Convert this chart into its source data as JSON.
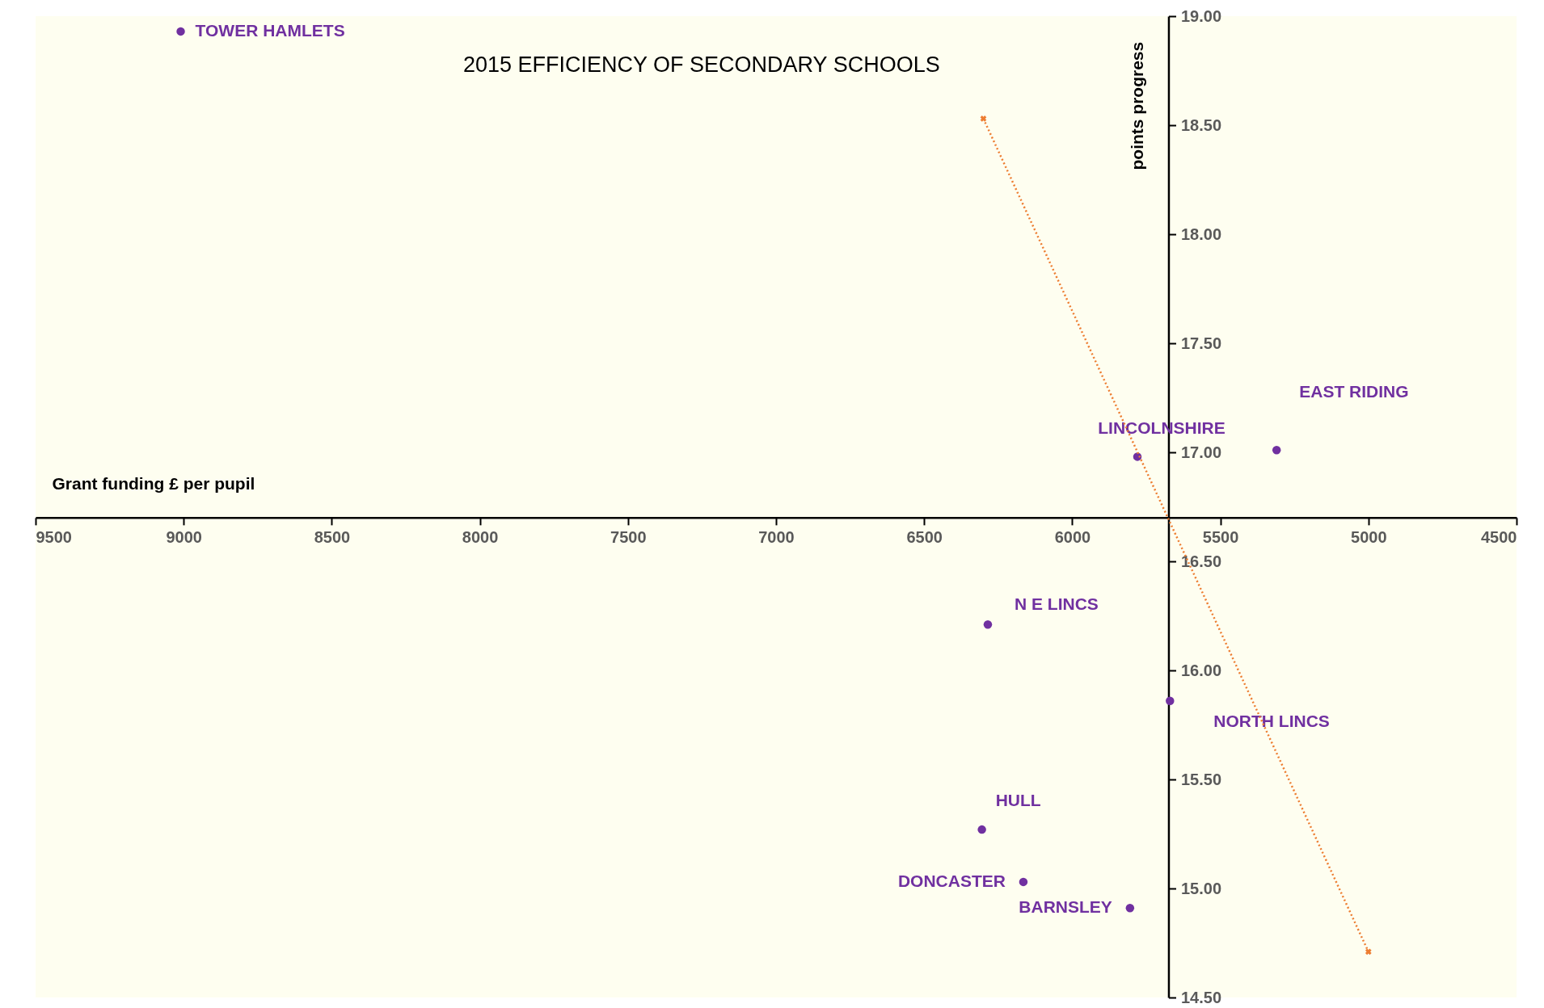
{
  "chart_data": {
    "type": "scatter",
    "title": "2015  EFFICIENCY OF SECONDARY SCHOOLS",
    "xlabel": "Grant funding £ per pupil",
    "ylabel": "points progress",
    "xlim": [
      9500,
      4500
    ],
    "xticks": [
      9500,
      9000,
      8500,
      8000,
      7500,
      7000,
      6500,
      6000,
      5500,
      5000,
      4500
    ],
    "ylim": [
      14.5,
      19.0
    ],
    "yticks": [
      {
        "value": 14.5,
        "label": "14.50"
      },
      {
        "value": 15.0,
        "label": "15.00"
      },
      {
        "value": 15.5,
        "label": "15.50"
      },
      {
        "value": 16.0,
        "label": "16.00"
      },
      {
        "value": 16.5,
        "label": "16.50"
      },
      {
        "value": 17.0,
        "label": "17.00"
      },
      {
        "value": 17.5,
        "label": "17.50"
      },
      {
        "value": 18.0,
        "label": "18.00"
      },
      {
        "value": 18.5,
        "label": "18.50"
      },
      {
        "value": 19.0,
        "label": "19.00"
      }
    ],
    "grid": false,
    "marker": "circle",
    "series": [
      {
        "name": "TOWER HAMLETS",
        "color": "#7030a0",
        "x": [
          9010
        ],
        "values": [
          18.93
        ]
      },
      {
        "name": "LINCOLNSHIRE",
        "color": "#7030a0",
        "x": [
          5780
        ],
        "values": [
          16.98
        ]
      },
      {
        "name": "EAST RIDING",
        "color": "#7030a0",
        "x": [
          5310
        ],
        "values": [
          17.01
        ]
      },
      {
        "name": "N E LINCS",
        "color": "#7030a0",
        "x": [
          6285
        ],
        "values": [
          16.21
        ]
      },
      {
        "name": "NORTH LINCS",
        "color": "#7030a0",
        "x": [
          5670
        ],
        "values": [
          15.86
        ]
      },
      {
        "name": "HULL",
        "color": "#7030a0",
        "x": [
          6305
        ],
        "values": [
          15.27
        ]
      },
      {
        "name": "DONCASTER",
        "color": "#7030a0",
        "x": [
          6165
        ],
        "values": [
          15.03
        ]
      },
      {
        "name": "BARNSLEY",
        "color": "#7030a0",
        "x": [
          5805
        ],
        "values": [
          14.91
        ]
      },
      {
        "type": "line",
        "color": "#ed7d31",
        "line_style": "dotted",
        "marker": "cross",
        "x": [
          6300,
          5000
        ],
        "values": [
          18.53,
          14.71
        ]
      }
    ]
  }
}
